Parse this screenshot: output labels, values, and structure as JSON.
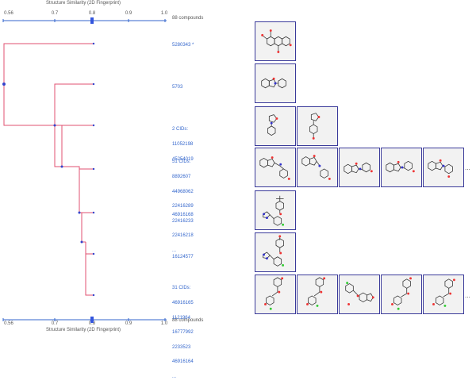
{
  "axis": {
    "title": "Structure Similarity (2D Fingerprint)",
    "ticks": [
      "0.56",
      "0.7",
      "0.8",
      "0.9",
      "1.0"
    ],
    "count_label": "88 compounds",
    "marker_value": "0.8"
  },
  "leaves": [
    {
      "lines": [
        "5280343 *"
      ]
    },
    {
      "lines": [
        "5703"
      ]
    },
    {
      "lines": [
        "2 CIDs:",
        "11052198",
        "45254019"
      ]
    },
    {
      "lines": [
        "51 CIDs:",
        "8892607",
        "44968062",
        "22416289",
        "22416233",
        "22416218",
        "..."
      ]
    },
    {
      "lines": [
        "46916168"
      ]
    },
    {
      "lines": [
        "16124577"
      ]
    },
    {
      "lines": [
        "31 CIDs:",
        "46916165",
        "1121964",
        "16777992",
        "2233523",
        "46916164",
        "..."
      ]
    }
  ],
  "more_indicator": "...",
  "colors": {
    "link": "#3366cc",
    "branch": "#e05070",
    "node": "#3344cc",
    "cell_border": "#3a3a9a",
    "axis": "#3366cc"
  }
}
